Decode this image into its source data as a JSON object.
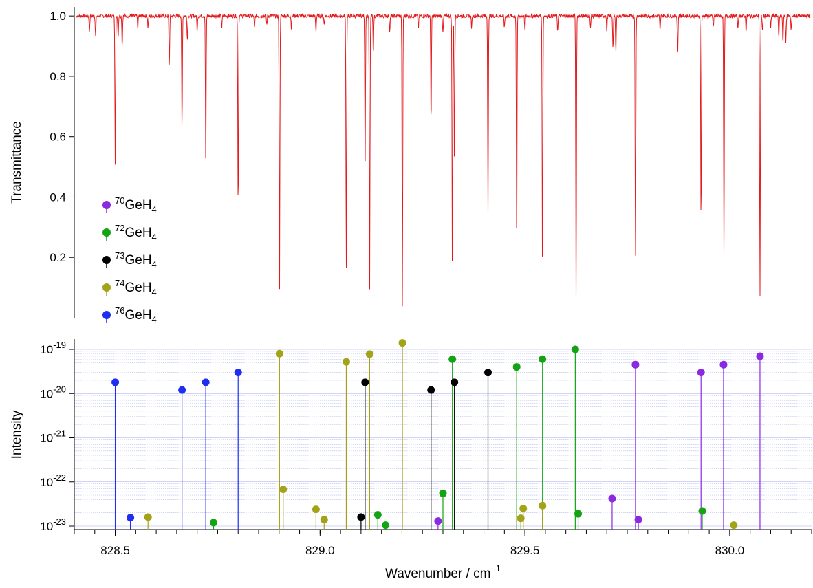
{
  "chart_data": [
    {
      "type": "line",
      "ylabel": "Transmittance",
      "xlim": [
        828.4,
        830.2
      ],
      "ylim": [
        0.0,
        1.03
      ],
      "yticks": [
        "0.2",
        "0.4",
        "0.6",
        "0.8",
        "1.0"
      ],
      "series": [
        {
          "color": "#e41a1c",
          "baseline": 1.0,
          "dips": [
            {
              "x": 828.437,
              "y": 0.95
            },
            {
              "x": 828.452,
              "y": 0.93
            },
            {
              "x": 828.5,
              "y": 0.51
            },
            {
              "x": 828.507,
              "y": 0.93
            },
            {
              "x": 828.517,
              "y": 0.9
            },
            {
              "x": 828.555,
              "y": 0.96
            },
            {
              "x": 828.58,
              "y": 0.96
            },
            {
              "x": 828.632,
              "y": 0.83
            },
            {
              "x": 828.663,
              "y": 0.62
            },
            {
              "x": 828.676,
              "y": 0.92
            },
            {
              "x": 828.7,
              "y": 0.95
            },
            {
              "x": 828.721,
              "y": 0.5
            },
            {
              "x": 828.76,
              "y": 0.96
            },
            {
              "x": 828.8,
              "y": 0.35
            },
            {
              "x": 828.84,
              "y": 0.96
            },
            {
              "x": 828.87,
              "y": 0.97
            },
            {
              "x": 828.901,
              "y": 0.07
            },
            {
              "x": 828.93,
              "y": 0.96
            },
            {
              "x": 828.99,
              "y": 0.95
            },
            {
              "x": 829.01,
              "y": 0.97
            },
            {
              "x": 829.064,
              "y": 0.16
            },
            {
              "x": 829.11,
              "y": 0.5
            },
            {
              "x": 829.121,
              "y": 0.07
            },
            {
              "x": 829.13,
              "y": 0.88
            },
            {
              "x": 829.17,
              "y": 0.95
            },
            {
              "x": 829.201,
              "y": 0.03
            },
            {
              "x": 829.24,
              "y": 0.96
            },
            {
              "x": 829.271,
              "y": 0.64
            },
            {
              "x": 829.3,
              "y": 0.94
            },
            {
              "x": 829.323,
              "y": 0.12
            },
            {
              "x": 829.328,
              "y": 0.5
            },
            {
              "x": 829.37,
              "y": 0.96
            },
            {
              "x": 829.41,
              "y": 0.34
            },
            {
              "x": 829.45,
              "y": 0.96
            },
            {
              "x": 829.48,
              "y": 0.24
            },
            {
              "x": 829.5,
              "y": 0.95
            },
            {
              "x": 829.543,
              "y": 0.13
            },
            {
              "x": 829.58,
              "y": 0.95
            },
            {
              "x": 829.625,
              "y": 0.05
            },
            {
              "x": 829.66,
              "y": 0.96
            },
            {
              "x": 829.7,
              "y": 0.95
            },
            {
              "x": 829.715,
              "y": 0.89
            },
            {
              "x": 829.722,
              "y": 0.88
            },
            {
              "x": 829.77,
              "y": 0.19
            },
            {
              "x": 829.83,
              "y": 0.95
            },
            {
              "x": 829.873,
              "y": 0.87
            },
            {
              "x": 829.93,
              "y": 0.3
            },
            {
              "x": 829.96,
              "y": 0.96
            },
            {
              "x": 829.986,
              "y": 0.2
            },
            {
              "x": 830.02,
              "y": 0.96
            },
            {
              "x": 830.04,
              "y": 0.95
            },
            {
              "x": 830.074,
              "y": 0.07
            },
            {
              "x": 830.08,
              "y": 0.95
            },
            {
              "x": 830.1,
              "y": 0.96
            },
            {
              "x": 830.12,
              "y": 0.93
            },
            {
              "x": 830.13,
              "y": 0.91
            },
            {
              "x": 830.137,
              "y": 0.91
            },
            {
              "x": 830.15,
              "y": 0.95
            }
          ]
        }
      ],
      "legend": {
        "placement": "bottom-left",
        "entries": [
          {
            "mass": "70",
            "mid": "GeH",
            "sub": "4",
            "color": "#8a2be2"
          },
          {
            "mass": "72",
            "mid": "GeH",
            "sub": "4",
            "color": "#13a313"
          },
          {
            "mass": "73",
            "mid": "GeH",
            "sub": "4",
            "color": "#000000"
          },
          {
            "mass": "74",
            "mid": "GeH",
            "sub": "4",
            "color": "#a3a31a"
          },
          {
            "mass": "76",
            "mid": "GeH",
            "sub": "4",
            "color": "#1f2ff2"
          }
        ]
      }
    },
    {
      "type": "scatter",
      "subtype": "stem",
      "xlabel": {
        "main": "Wavenumber / cm",
        "sup": "–1"
      },
      "ylabel": "Intensity",
      "xlim": [
        828.4,
        830.2
      ],
      "xticks": [
        "828.5",
        "829.0",
        "829.5",
        "830.0"
      ],
      "yscale": "log",
      "ylim": [
        1e-23,
        1.7e-19
      ],
      "yticks": [
        {
          "base": "10",
          "exp": "-23",
          "value": 1e-23
        },
        {
          "base": "10",
          "exp": "-22",
          "value": 1e-22
        },
        {
          "base": "10",
          "exp": "-21",
          "value": 1e-21
        },
        {
          "base": "10",
          "exp": "-20",
          "value": 1e-20
        },
        {
          "base": "10",
          "exp": "-19",
          "value": 1e-19
        }
      ],
      "grid": "horizontal minor log gridlines (blue, dotted)",
      "series": [
        {
          "isotope": "70",
          "color": "#8a2be2",
          "x": [
            829.288,
            829.713,
            829.77,
            829.777,
            829.93,
            829.985,
            830.074
          ],
          "y": [
            1.3e-23,
            4.2e-23,
            4.5e-20,
            1.4e-23,
            3e-20,
            4.5e-20,
            7e-20
          ]
        },
        {
          "isotope": "72",
          "color": "#13a313",
          "x": [
            828.74,
            829.141,
            829.16,
            829.3,
            829.323,
            829.48,
            829.543,
            829.623,
            829.63,
            829.933
          ],
          "y": [
            1.2e-23,
            1.8e-23,
            1.05e-23,
            5.5e-23,
            6e-20,
            4e-20,
            6e-20,
            1e-19,
            1.9e-23,
            2.2e-23
          ]
        },
        {
          "isotope": "73",
          "color": "#000000",
          "x": [
            829.1,
            829.11,
            829.271,
            829.328,
            829.41
          ],
          "y": [
            1.6e-23,
            1.8e-20,
            1.2e-20,
            1.8e-20,
            3e-20
          ]
        },
        {
          "isotope": "74",
          "color": "#a3a31a",
          "x": [
            828.58,
            828.901,
            828.91,
            828.99,
            829.01,
            829.064,
            829.121,
            829.201,
            829.49,
            829.496,
            829.543,
            830.01
          ],
          "y": [
            1.6e-23,
            8e-20,
            6.8e-23,
            2.4e-23,
            1.4e-23,
            5.2e-20,
            7.8e-20,
            1.4e-19,
            1.5e-23,
            2.5e-23,
            2.9e-23,
            1.05e-23
          ]
        },
        {
          "isotope": "76",
          "color": "#1f2ff2",
          "x": [
            828.5,
            828.537,
            828.663,
            828.721,
            828.8
          ],
          "y": [
            1.8e-20,
            1.55e-23,
            1.2e-20,
            1.8e-20,
            3e-20
          ]
        }
      ]
    }
  ]
}
